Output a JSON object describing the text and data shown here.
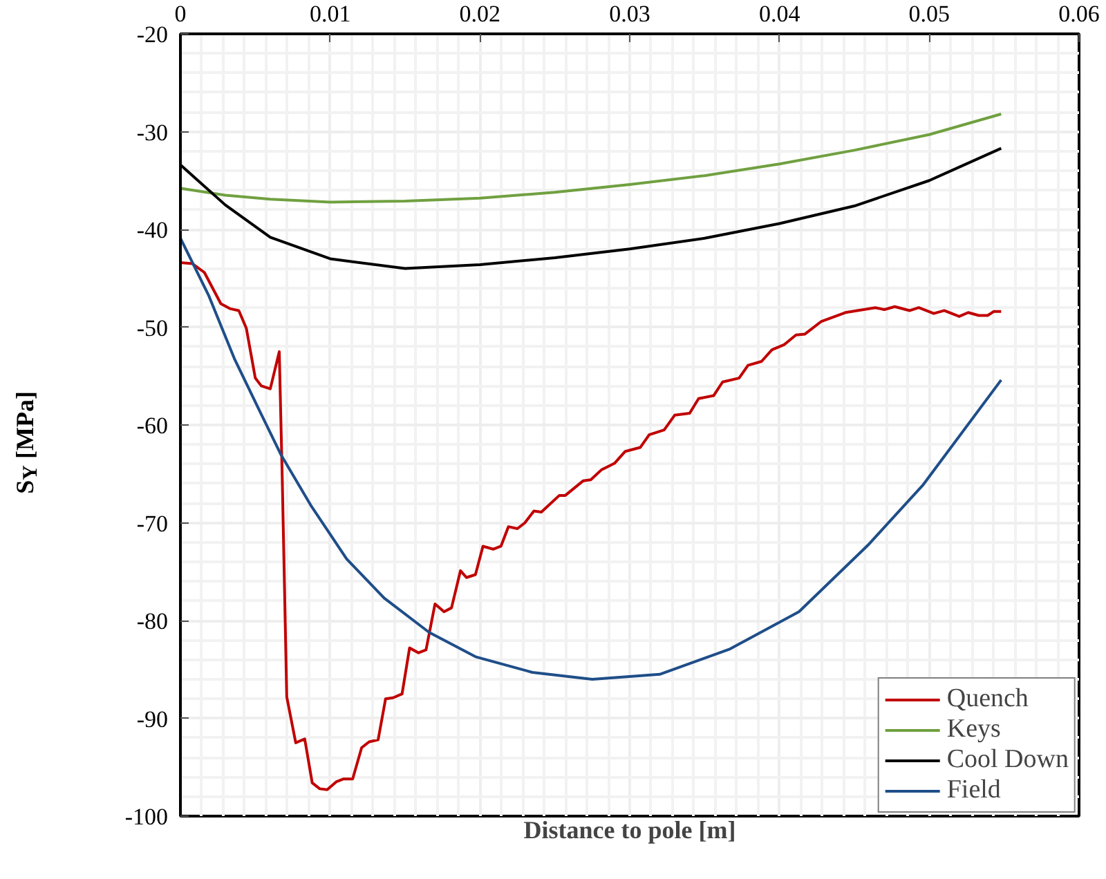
{
  "chart_data": {
    "type": "line",
    "xlabel": "Distance to pole [m]",
    "ylabel": "S$_{Y}$ [MPa]",
    "xlim": [
      0,
      0.06
    ],
    "xticks": [
      0,
      0.01,
      0.02,
      0.03,
      0.04,
      0.05,
      0.06
    ],
    "ylim": [
      -100,
      -20
    ],
    "yticks": [
      -100,
      -90,
      -80,
      -70,
      -60,
      -50,
      -40,
      -30,
      -20
    ],
    "grid": true,
    "legend": "bottom right",
    "marker": "none",
    "line_style": "solid",
    "series": [
      {
        "name": "Quench",
        "color": "#c00000",
        "x": [
          0,
          0.0008,
          0.0016,
          0.0027,
          0.0033,
          0.0039,
          0.0044,
          0.005,
          0.0054,
          0.006,
          0.0066,
          0.0068,
          0.0071,
          0.0077,
          0.0083,
          0.0088,
          0.0093,
          0.0098,
          0.0104,
          0.0109,
          0.0115,
          0.0121,
          0.0126,
          0.0132,
          0.0137,
          0.0142,
          0.0148,
          0.0153,
          0.0159,
          0.0164,
          0.017,
          0.0176,
          0.0181,
          0.0187,
          0.0191,
          0.0197,
          0.0202,
          0.0209,
          0.0214,
          0.0219,
          0.0225,
          0.023,
          0.0236,
          0.0241,
          0.0253,
          0.0257,
          0.0269,
          0.0274,
          0.0281,
          0.029,
          0.0297,
          0.0307,
          0.0313,
          0.0323,
          0.033,
          0.034,
          0.0346,
          0.0356,
          0.0362,
          0.0373,
          0.0379,
          0.0388,
          0.0395,
          0.0403,
          0.0411,
          0.0417,
          0.0428,
          0.0444,
          0.0464,
          0.047,
          0.0477,
          0.0487,
          0.0493,
          0.0503,
          0.051,
          0.052,
          0.0526,
          0.0533,
          0.0539,
          0.0543,
          0.0548
        ],
        "values": [
          -43.4,
          -43.5,
          -44.4,
          -47.6,
          -48.1,
          -48.3,
          -50.1,
          -55.2,
          -56.0,
          -56.3,
          -52.5,
          -65.5,
          -87.8,
          -92.5,
          -92.1,
          -96.6,
          -97.2,
          -97.3,
          -96.5,
          -96.2,
          -96.2,
          -93.0,
          -92.4,
          -92.2,
          -88.0,
          -87.9,
          -87.5,
          -82.8,
          -83.3,
          -83.0,
          -78.3,
          -79.1,
          -78.7,
          -74.9,
          -75.6,
          -75.3,
          -72.4,
          -72.7,
          -72.4,
          -70.4,
          -70.6,
          -70.0,
          -68.8,
          -68.9,
          -67.2,
          -67.2,
          -65.7,
          -65.6,
          -64.6,
          -63.9,
          -62.7,
          -62.3,
          -61.0,
          -60.5,
          -59.0,
          -58.8,
          -57.3,
          -57.0,
          -55.6,
          -55.2,
          -53.9,
          -53.5,
          -52.3,
          -51.8,
          -50.8,
          -50.7,
          -49.4,
          -48.5,
          -48.0,
          -48.2,
          -47.9,
          -48.3,
          -48.0,
          -48.6,
          -48.3,
          -48.9,
          -48.5,
          -48.8,
          -48.8,
          -48.4,
          -48.4
        ]
      },
      {
        "name": "Keys",
        "color": "#70a040",
        "x": [
          0,
          0.003,
          0.006,
          0.01,
          0.015,
          0.02,
          0.025,
          0.03,
          0.035,
          0.04,
          0.045,
          0.05,
          0.0548
        ],
        "values": [
          -35.8,
          -36.5,
          -36.9,
          -37.2,
          -37.1,
          -36.8,
          -36.2,
          -35.4,
          -34.5,
          -33.3,
          -31.9,
          -30.3,
          -28.2
        ]
      },
      {
        "name": "Cool Down",
        "color": "#000000",
        "x": [
          0,
          0.003,
          0.006,
          0.01,
          0.015,
          0.02,
          0.025,
          0.03,
          0.035,
          0.04,
          0.045,
          0.05,
          0.0548
        ],
        "values": [
          -33.4,
          -37.5,
          -40.8,
          -43.0,
          -44.0,
          -43.6,
          -42.9,
          -42.0,
          -40.9,
          -39.4,
          -37.6,
          -35.0,
          -31.7
        ]
      },
      {
        "name": "Field",
        "color": "#1f4e89",
        "x": [
          0,
          0.0019,
          0.0036,
          0.0053,
          0.0067,
          0.0087,
          0.0111,
          0.0136,
          0.0166,
          0.0197,
          0.0235,
          0.0275,
          0.032,
          0.0367,
          0.0413,
          0.0459,
          0.0496,
          0.0548
        ],
        "values": [
          -40.9,
          -46.8,
          -53.2,
          -58.6,
          -63.0,
          -68.2,
          -73.7,
          -77.7,
          -81.2,
          -83.7,
          -85.3,
          -86.0,
          -85.5,
          -82.9,
          -79.1,
          -72.3,
          -66.1,
          -55.4
        ]
      }
    ]
  }
}
